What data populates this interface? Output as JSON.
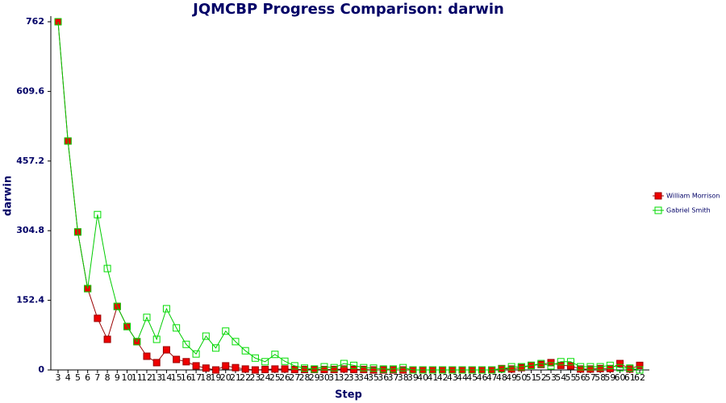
{
  "chart_data": {
    "type": "line",
    "title": "JQMCBP Progress Comparison: darwin",
    "x_label": "Step",
    "y_label": "darwin",
    "categories": [
      "3",
      "4",
      "5",
      "6",
      "7",
      "8",
      "9",
      "10",
      "11",
      "12",
      "13",
      "14",
      "15",
      "16",
      "17",
      "18",
      "19",
      "20",
      "21",
      "22",
      "23",
      "24",
      "25",
      "26",
      "27",
      "28",
      "29",
      "30",
      "31",
      "32",
      "33",
      "34",
      "35",
      "36",
      "37",
      "38",
      "39",
      "40",
      "41",
      "42",
      "43",
      "44",
      "45",
      "46",
      "47",
      "48",
      "49",
      "50",
      "51",
      "52",
      "53",
      "54",
      "55",
      "56",
      "57",
      "58",
      "59",
      "60",
      "61",
      "62"
    ],
    "ylim": [
      0,
      762
    ],
    "yticks": [
      0,
      152.4,
      304.8,
      457.2,
      609.6,
      762
    ],
    "legend": "right",
    "series": [
      {
        "name": "William Morrison",
        "color": "#ee0000",
        "line_color": "#990000",
        "marker": "filled",
        "values": [
          762,
          501,
          302,
          178,
          113,
          67,
          139,
          95,
          62,
          30,
          16,
          44,
          23,
          18,
          9,
          4,
          0,
          9,
          5,
          2,
          0,
          1,
          2,
          2,
          1,
          1,
          1,
          1,
          1,
          2,
          1,
          1,
          0,
          0,
          0,
          0,
          0,
          0,
          0,
          0,
          0,
          0,
          0,
          0,
          0,
          3,
          2,
          5,
          10,
          12,
          16,
          10,
          9,
          2,
          2,
          3,
          3,
          14,
          2,
          10
        ]
      },
      {
        "name": "Gabriel Smith",
        "color": "#00dd00",
        "line_color": "#00cc00",
        "marker": "hollow",
        "values": [
          762,
          501,
          302,
          178,
          340,
          222,
          139,
          95,
          62,
          115,
          67,
          134,
          92,
          56,
          35,
          74,
          48,
          85,
          62,
          42,
          26,
          18,
          34,
          19,
          9,
          4,
          2,
          7,
          5,
          14,
          10,
          5,
          4,
          2,
          2,
          5,
          0,
          0,
          0,
          0,
          0,
          0,
          0,
          0,
          0,
          2,
          7,
          7,
          10,
          14,
          9,
          18,
          18,
          7,
          7,
          7,
          10,
          5,
          4,
          0
        ]
      }
    ]
  }
}
